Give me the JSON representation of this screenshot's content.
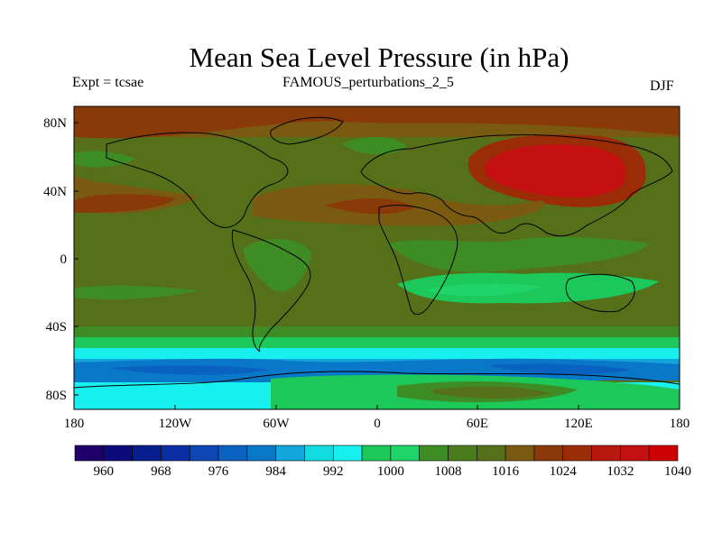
{
  "title": "Mean Sea Level Pressure (in hPa)",
  "subtitle_left": "Expt = tcsae",
  "subtitle_center": "FAMOUS_perturbations_2_5",
  "subtitle_right": "DJF",
  "lat_labels": [
    "80N",
    "40N",
    "0",
    "40S",
    "80S"
  ],
  "lon_labels": [
    "180",
    "120W",
    "60W",
    "0",
    "60E",
    "120E",
    "180"
  ],
  "colorbar": {
    "labels": [
      "960",
      "968",
      "976",
      "984",
      "992",
      "1000",
      "1008",
      "1016",
      "1024",
      "1032",
      "1040"
    ],
    "colors": [
      "#20006a",
      "#0b0b7c",
      "#061e8e",
      "#0a2ea3",
      "#0c47b4",
      "#0a62c0",
      "#0a78c8",
      "#12a6dc",
      "#10dce0",
      "#18efef",
      "#1bc859",
      "#1fd56a",
      "#3d8d24",
      "#4a7c1c",
      "#56701a",
      "#7a5a10",
      "#8a3a08",
      "#9a2d06",
      "#b81810",
      "#c41010",
      "#cc0000"
    ]
  }
}
